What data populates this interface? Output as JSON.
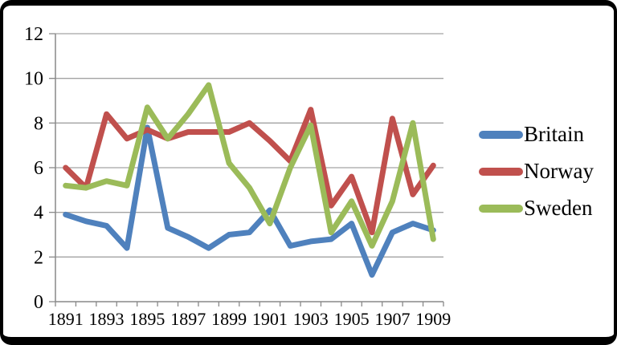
{
  "chart_data": {
    "type": "line",
    "title": "",
    "xlabel": "",
    "ylabel": "",
    "categories": [
      1891,
      1892,
      1893,
      1894,
      1895,
      1896,
      1897,
      1898,
      1899,
      1900,
      1901,
      1902,
      1903,
      1904,
      1905,
      1906,
      1907,
      1908,
      1909
    ],
    "x_tick_labels": [
      "1891",
      "1893",
      "1895",
      "1897",
      "1899",
      "1901",
      "1903",
      "1905",
      "1907",
      "1909"
    ],
    "x_label_every": 2,
    "y_ticks": [
      0,
      2,
      4,
      6,
      8,
      10,
      12
    ],
    "ylim": [
      0,
      12
    ],
    "grid": true,
    "legend_position": "right",
    "series": [
      {
        "name": "Britain",
        "color": "#4F81BD",
        "values": [
          3.9,
          3.6,
          3.4,
          2.4,
          7.8,
          3.3,
          2.9,
          2.4,
          3.0,
          3.1,
          4.1,
          2.5,
          2.7,
          2.8,
          3.5,
          1.2,
          3.1,
          3.5,
          3.2
        ]
      },
      {
        "name": "Norway",
        "color": "#C0504D",
        "values": [
          6.0,
          5.1,
          8.4,
          7.3,
          7.7,
          7.3,
          7.6,
          7.6,
          7.6,
          8.0,
          7.2,
          6.3,
          8.6,
          4.3,
          5.6,
          3.1,
          8.2,
          4.8,
          6.1
        ]
      },
      {
        "name": "Sweden",
        "color": "#9BBB59",
        "values": [
          5.2,
          5.1,
          5.4,
          5.2,
          8.7,
          7.3,
          8.4,
          9.7,
          6.2,
          5.1,
          3.5,
          6.0,
          7.9,
          3.1,
          4.5,
          2.5,
          4.5,
          8.0,
          2.8
        ]
      }
    ],
    "axis_color": "#898989",
    "grid_color": "#A3A3A3",
    "text_color": "#000000",
    "line_width": 7
  }
}
